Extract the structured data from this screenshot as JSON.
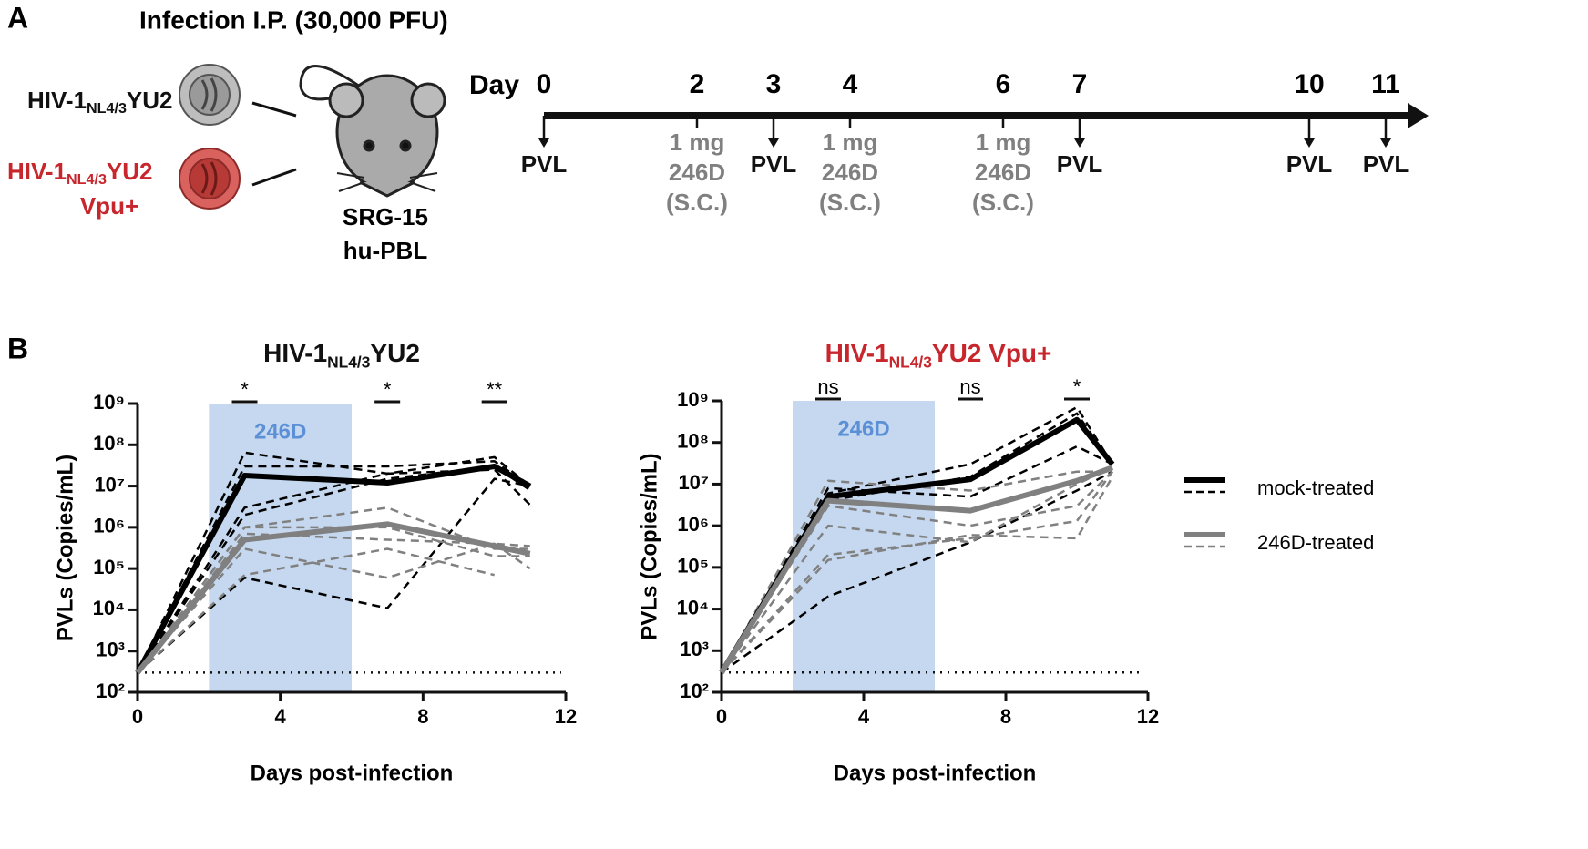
{
  "panel_a": {
    "label": "A",
    "title": "Infection I.P. (30,000 PFU)",
    "viruses": [
      {
        "name": "HIV-1",
        "sub": "NL4/3",
        "rest": "YU2",
        "color": "#111111"
      },
      {
        "name": "HIV-1",
        "sub": "NL4/3",
        "rest": "YU2",
        "line2": "Vpu+",
        "color": "#c8262d"
      }
    ],
    "mouse": [
      "SRG-15",
      "hu-PBL"
    ],
    "timeline": {
      "label": "Day",
      "events": [
        {
          "day": 0,
          "label": [
            "PVL"
          ],
          "color": "#111111"
        },
        {
          "day": 2,
          "label": [
            "1 mg",
            "246D",
            "(S.C.)"
          ],
          "color": "#808080"
        },
        {
          "day": 3,
          "label": [
            "PVL"
          ],
          "color": "#111111"
        },
        {
          "day": 4,
          "label": [
            "1 mg",
            "246D",
            "(S.C.)"
          ],
          "color": "#808080"
        },
        {
          "day": 6,
          "label": [
            "1 mg",
            "246D",
            "(S.C.)"
          ],
          "color": "#808080"
        },
        {
          "day": 7,
          "label": [
            "PVL"
          ],
          "color": "#111111"
        },
        {
          "day": 10,
          "label": [
            "PVL"
          ],
          "color": "#111111"
        },
        {
          "day": 11,
          "label": [
            "PVL"
          ],
          "color": "#111111"
        }
      ]
    }
  },
  "panel_b": {
    "label": "B"
  },
  "chart_data": [
    {
      "type": "line",
      "title": {
        "name": "HIV-1",
        "sub": "NL4/3",
        "rest": "YU2"
      },
      "title_color": "#111111",
      "x_label": "Days post-infection",
      "y_label": "PVLs (Copies/mL)",
      "x": [
        0,
        3,
        7,
        10,
        11
      ],
      "xlim": [
        0,
        12
      ],
      "xticks": [
        0,
        4,
        8,
        12
      ],
      "ylim": [
        100,
        1000000000
      ],
      "log_y": true,
      "yticks": [
        {
          "value": 100,
          "label": "10²"
        },
        {
          "value": 1000,
          "label": "10³"
        },
        {
          "value": 10000,
          "label": "10⁴"
        },
        {
          "value": 100000,
          "label": "10⁵"
        },
        {
          "value": 1000000,
          "label": "10⁶"
        },
        {
          "value": 10000000,
          "label": "10⁷"
        },
        {
          "value": 100000000,
          "label": "10⁸"
        },
        {
          "value": 1000000000,
          "label": "10⁹"
        }
      ],
      "limit_of_detection": 300,
      "shade": {
        "x": [
          2,
          6
        ],
        "label": "246D",
        "color": "#c5d8ef",
        "label_color": "#5b8fd6"
      },
      "significance": [
        {
          "x": 3,
          "label": "*"
        },
        {
          "x": 7,
          "label": "*"
        },
        {
          "x": 10,
          "label": "**"
        }
      ],
      "series": [
        {
          "name": "mock-treated",
          "color": "#000000",
          "values": [
            300,
            18000000,
            12000000,
            30000000,
            10000000
          ],
          "individuals": [
            [
              300,
              65000000,
              20000000,
              50000000,
              10000000
            ],
            [
              300,
              30000000,
              30000000,
              40000000,
              10000000
            ],
            [
              300,
              3000000,
              20000000,
              25000000,
              3500000
            ],
            [
              300,
              60000,
              11000,
              15000000,
              10000000
            ],
            [
              300,
              2000000,
              15000000,
              30000000,
              8000000
            ]
          ]
        },
        {
          "name": "246D-treated",
          "color": "#808080",
          "values": [
            300,
            500000,
            1200000,
            350000,
            230000
          ],
          "individuals": [
            [
              300,
              1000000,
              3000000,
              300000,
              300000
            ],
            [
              300,
              700000,
              500000,
              400000,
              100000
            ],
            [
              300,
              300000,
              60000,
              400000,
              350000
            ],
            [
              300,
              70000,
              300000,
              70000,
              null
            ],
            [
              300,
              1000000,
              1000000,
              200000,
              200000
            ]
          ]
        }
      ]
    },
    {
      "type": "line",
      "title": {
        "name": "HIV-1",
        "sub": "NL4/3",
        "rest": "YU2 Vpu+"
      },
      "title_color": "#c8262d",
      "x_label": "Days post-infection",
      "y_label": "PVLs (Copies/mL)",
      "x": [
        0,
        3,
        7,
        10,
        11
      ],
      "xlim": [
        0,
        12
      ],
      "xticks": [
        0,
        4,
        8,
        12
      ],
      "ylim": [
        100,
        1000000000
      ],
      "log_y": true,
      "yticks": [
        {
          "value": 100,
          "label": "10²"
        },
        {
          "value": 1000,
          "label": "10³"
        },
        {
          "value": 10000,
          "label": "10⁴"
        },
        {
          "value": 100000,
          "label": "10⁵"
        },
        {
          "value": 1000000,
          "label": "10⁶"
        },
        {
          "value": 10000000,
          "label": "10⁷"
        },
        {
          "value": 100000000,
          "label": "10⁸"
        },
        {
          "value": 1000000000,
          "label": "10⁹"
        }
      ],
      "limit_of_detection": 300,
      "shade": {
        "x": [
          2,
          6
        ],
        "label": "246D",
        "color": "#c5d8ef",
        "label_color": "#5b8fd6"
      },
      "significance": [
        {
          "x": 3,
          "label": "ns"
        },
        {
          "x": 7,
          "label": "ns"
        },
        {
          "x": 10,
          "label": "*"
        }
      ],
      "series": [
        {
          "color": "#000000",
          "values": [
            300,
            5000000,
            13000000,
            350000000,
            30000000
          ],
          "individuals": [
            [
              300,
              6000000,
              30000000,
              700000000,
              30000000
            ],
            [
              300,
              20000,
              400000,
              7000000,
              20000000
            ],
            [
              300,
              8000000,
              5000000,
              80000000,
              30000000
            ],
            [
              300,
              4000000,
              15000000,
              500000000,
              30000000
            ]
          ]
        },
        {
          "color": "#808080",
          "values": [
            300,
            4000000,
            2300000,
            12000000,
            25000000
          ],
          "individuals": [
            [
              300,
              12000000,
              7000000,
              20000000,
              20000000
            ],
            [
              300,
              1000000,
              400000,
              10000000,
              25000000
            ],
            [
              300,
              200000,
              500000,
              1300000,
              20000000
            ],
            [
              300,
              150000,
              600000,
              500000,
              15000000
            ],
            [
              300,
              3000000,
              1000000,
              3000000,
              20000000
            ]
          ]
        }
      ]
    }
  ]
}
